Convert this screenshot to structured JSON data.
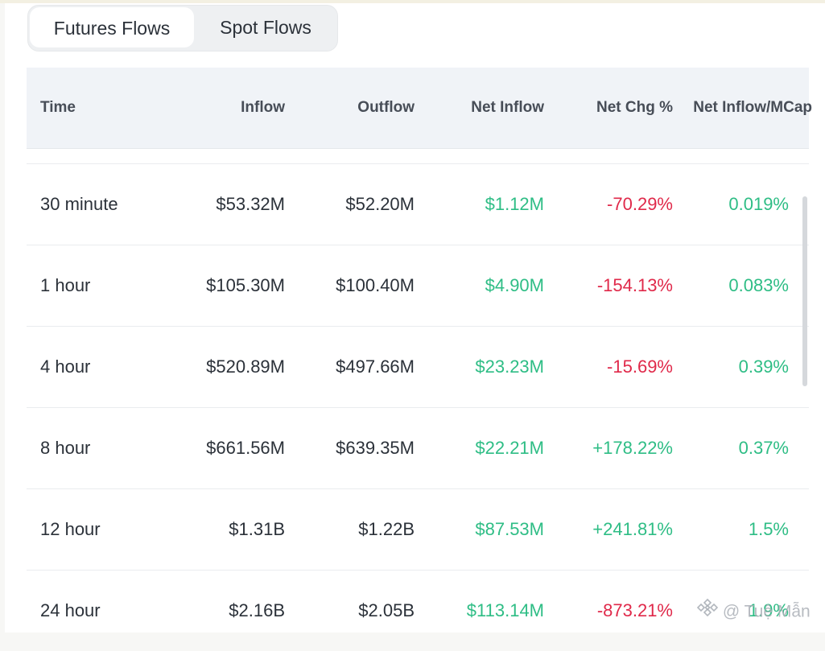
{
  "tabs": [
    {
      "label": "Futures Flows",
      "active": true
    },
    {
      "label": "Spot Flows",
      "active": false
    }
  ],
  "table": {
    "headers": [
      "Time",
      "Inflow",
      "Outflow",
      "Net Inflow",
      "Net Chg %",
      "Net Inflow/MCap"
    ],
    "rows": [
      {
        "time": "30 minute",
        "inflow": "$53.32M",
        "outflow": "$52.20M",
        "net": "$1.12M",
        "chg": "-70.29%",
        "mcap": "0.019%"
      },
      {
        "time": "1 hour",
        "inflow": "$105.30M",
        "outflow": "$100.40M",
        "net": "$4.90M",
        "chg": "-154.13%",
        "mcap": "0.083%"
      },
      {
        "time": "4 hour",
        "inflow": "$520.89M",
        "outflow": "$497.66M",
        "net": "$23.23M",
        "chg": "-15.69%",
        "mcap": "0.39%"
      },
      {
        "time": "8 hour",
        "inflow": "$661.56M",
        "outflow": "$639.35M",
        "net": "$22.21M",
        "chg": "+178.22%",
        "mcap": "0.37%"
      },
      {
        "time": "12 hour",
        "inflow": "$1.31B",
        "outflow": "$1.22B",
        "net": "$87.53M",
        "chg": "+241.81%",
        "mcap": "1.5%"
      },
      {
        "time": "24 hour",
        "inflow": "$2.16B",
        "outflow": "$2.05B",
        "net": "$113.14M",
        "chg": "-873.21%",
        "mcap": "1.9%"
      }
    ]
  },
  "colors": {
    "positive": "#2ebd85",
    "negative": "#e0294a",
    "header_bg": "#f0f3f7"
  },
  "watermark": {
    "text": "@ Tuệ Mẫn",
    "icon": "binance-logo-icon"
  }
}
